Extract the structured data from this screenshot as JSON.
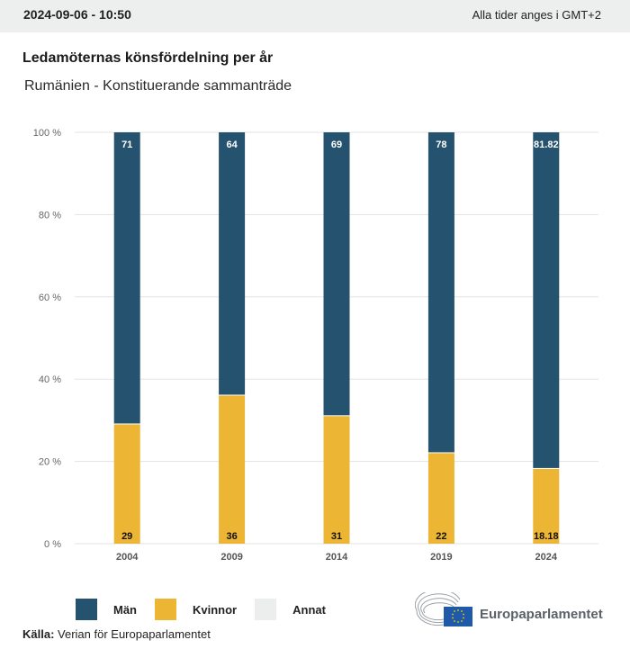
{
  "header": {
    "datetime": "2024-09-06 - 10:50",
    "timezone_note": "Alla tider anges i GMT+2"
  },
  "colors": {
    "man": "#25526f",
    "kvinnor": "#ecb533",
    "annat": "#eceded",
    "grid": "#e3e3e3"
  },
  "chart_data": {
    "type": "bar",
    "stacked": true,
    "title": "Ledamöternas könsfördelning per år",
    "subtitle": "Rumänien - Konstituerande sammanträde",
    "xlabel": "",
    "ylabel": "",
    "ylim": [
      0,
      100
    ],
    "yticks": [
      0,
      20,
      40,
      60,
      80,
      100
    ],
    "ytick_labels": [
      "0 %",
      "20 %",
      "40 %",
      "60 %",
      "80 %",
      "100 %"
    ],
    "grid": true,
    "categories": [
      "2004",
      "2009",
      "2014",
      "2019",
      "2024"
    ],
    "series": [
      {
        "name": "Kvinnor",
        "values": [
          29,
          36,
          31,
          22,
          18.18
        ],
        "labels": [
          "29",
          "36",
          "31",
          "22",
          "18.18"
        ]
      },
      {
        "name": "Män",
        "values": [
          71,
          64,
          69,
          78,
          81.82
        ],
        "labels": [
          "71",
          "64",
          "69",
          "78",
          "81.82"
        ]
      },
      {
        "name": "Annat",
        "values": [
          0,
          0,
          0,
          0,
          0
        ],
        "labels": [
          "",
          "",
          "",
          "",
          ""
        ]
      }
    ],
    "legend": {
      "placement": "bottom-left",
      "entries": [
        "Män",
        "Kvinnor",
        "Annat"
      ]
    }
  },
  "source": {
    "label": "Källa:",
    "text": " Verian för Europaparlamentet"
  },
  "logo": {
    "text": "Europaparlamentet",
    "icon": "european-parliament-logo"
  }
}
